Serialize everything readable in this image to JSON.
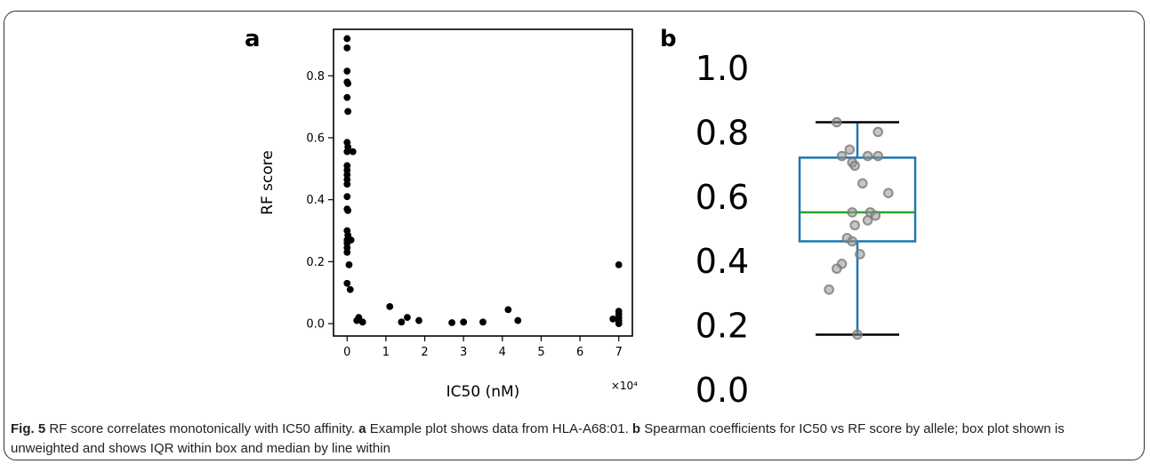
{
  "caption": {
    "fig_label": "Fig. 5",
    "title": " RF score correlates monotonically with IC50 affinity. ",
    "a_label": "a",
    "a_text": " Example plot shows data from HLA-A68:01. ",
    "b_label": "b",
    "b_text": " Spearman coefficients for IC50 vs RF score by allele; box plot shown is unweighted and shows IQR within box and median by line within"
  },
  "chart_data": [
    {
      "panel": "a",
      "type": "scatter",
      "xlabel": "IC50 (nM)",
      "ylabel": "RF score",
      "x_multiplier_label": "×10⁴",
      "xlim": [
        -0.35,
        7.35
      ],
      "ylim": [
        -0.04,
        0.95
      ],
      "xticks": [
        0,
        1,
        2,
        3,
        4,
        5,
        6,
        7
      ],
      "yticks": [
        0.0,
        0.2,
        0.4,
        0.6,
        0.8
      ],
      "ytick_labels": [
        "0.0",
        "0.2",
        "0.4",
        "0.6",
        "0.8"
      ],
      "x_units": "×10^4 nM",
      "points": [
        [
          0.0,
          0.92
        ],
        [
          0.0,
          0.89
        ],
        [
          0.0,
          0.815
        ],
        [
          0.0,
          0.78
        ],
        [
          0.02,
          0.775
        ],
        [
          0.0,
          0.73
        ],
        [
          0.02,
          0.685
        ],
        [
          0.0,
          0.585
        ],
        [
          0.02,
          0.57
        ],
        [
          0.0,
          0.555
        ],
        [
          0.15,
          0.555
        ],
        [
          0.0,
          0.51
        ],
        [
          0.0,
          0.495
        ],
        [
          0.0,
          0.48
        ],
        [
          0.0,
          0.465
        ],
        [
          0.0,
          0.45
        ],
        [
          0.0,
          0.41
        ],
        [
          0.0,
          0.37
        ],
        [
          0.02,
          0.365
        ],
        [
          0.0,
          0.3
        ],
        [
          0.02,
          0.285
        ],
        [
          0.0,
          0.27
        ],
        [
          0.1,
          0.27
        ],
        [
          0.0,
          0.26
        ],
        [
          0.0,
          0.245
        ],
        [
          0.0,
          0.23
        ],
        [
          0.05,
          0.19
        ],
        [
          0.0,
          0.13
        ],
        [
          0.08,
          0.11
        ],
        [
          0.25,
          0.01
        ],
        [
          0.3,
          0.02
        ],
        [
          0.4,
          0.005
        ],
        [
          1.1,
          0.055
        ],
        [
          1.4,
          0.005
        ],
        [
          1.55,
          0.02
        ],
        [
          1.85,
          0.01
        ],
        [
          2.7,
          0.003
        ],
        [
          3.0,
          0.005
        ],
        [
          3.5,
          0.005
        ],
        [
          4.15,
          0.045
        ],
        [
          4.4,
          0.01
        ],
        [
          6.85,
          0.015
        ],
        [
          7.0,
          0.19
        ],
        [
          7.0,
          0.04
        ],
        [
          7.0,
          0.03
        ],
        [
          7.0,
          0.02
        ],
        [
          7.0,
          0.01
        ],
        [
          7.0,
          0.0
        ]
      ]
    },
    {
      "panel": "b",
      "type": "box",
      "ylim": [
        0.0,
        1.0
      ],
      "yticks": [
        0.2,
        0.4,
        0.6,
        0.8,
        1.0
      ],
      "ytick_labels": [
        "0.2",
        "0.4",
        "0.6",
        "0.8",
        "1.0"
      ],
      "extra_tick_label": "0.0",
      "whisker_low": 0.17,
      "q1": 0.46,
      "median": 0.55,
      "q3": 0.72,
      "whisker_high": 0.83,
      "box_color": "#1f77b4",
      "median_color": "#2ca02c",
      "points": [
        [
          -0.4,
          0.83
        ],
        [
          0.4,
          0.8
        ],
        [
          -0.15,
          0.745
        ],
        [
          -0.3,
          0.725
        ],
        [
          0.2,
          0.725
        ],
        [
          0.4,
          0.725
        ],
        [
          -0.1,
          0.705
        ],
        [
          -0.05,
          0.695
        ],
        [
          0.1,
          0.64
        ],
        [
          0.6,
          0.61
        ],
        [
          -0.1,
          0.55
        ],
        [
          0.25,
          0.55
        ],
        [
          0.35,
          0.54
        ],
        [
          0.2,
          0.525
        ],
        [
          -0.05,
          0.51
        ],
        [
          -0.2,
          0.47
        ],
        [
          -0.1,
          0.46
        ],
        [
          0.05,
          0.42
        ],
        [
          -0.3,
          0.39
        ],
        [
          -0.4,
          0.375
        ],
        [
          -0.55,
          0.31
        ],
        [
          0.0,
          0.17
        ]
      ]
    }
  ],
  "panel_labels": [
    "a",
    "b"
  ]
}
